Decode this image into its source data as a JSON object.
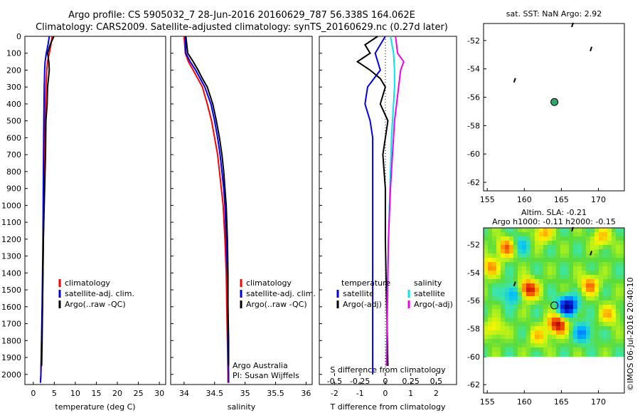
{
  "header": {
    "title_line1": "Argo profile: CS 5905032_7 28-Jun-2016 20160629_787 56.338S 164.062E",
    "title_line2": "Climatology: CARS2009. Satellite-adjusted climatology: synTS_20160629.nc (0.27d later)"
  },
  "depth_ticks": [
    "0",
    "100",
    "200",
    "300",
    "400",
    "500",
    "600",
    "700",
    "800",
    "900",
    "1000",
    "1100",
    "1200",
    "1300",
    "1400",
    "1500",
    "1600",
    "1700",
    "1800",
    "1900",
    "2000"
  ],
  "colors": {
    "climatology": "#ff0000",
    "satellite": "#0000ee",
    "argo": "#000000",
    "satellite_sal": "#00e5ee",
    "argo_sal": "#ee00ee",
    "positive": "#ff3b30",
    "positive_cyan": "#00e5ee"
  },
  "chart_data": [
    {
      "type": "line",
      "id": "temperature",
      "xlabel": "temperature (deg C)",
      "xlim": [
        -2,
        31.5
      ],
      "xticks": [
        "0",
        "5",
        "10",
        "15",
        "20",
        "25",
        "30"
      ],
      "ylim": [
        2060,
        0
      ],
      "legend": [
        "climatology",
        "satellite-adj. clim.",
        "Argo(..raw -QC)"
      ],
      "series": [
        {
          "name": "climatology",
          "depth": [
            0,
            50,
            100,
            150,
            200,
            300,
            500,
            800,
            1200,
            1600,
            2000,
            2050
          ],
          "values": [
            4.5,
            4.2,
            3.8,
            3.4,
            3.2,
            3.0,
            2.8,
            2.6,
            2.4,
            2.2,
            1.8,
            1.7
          ]
        },
        {
          "name": "satellite-adj. clim.",
          "depth": [
            0,
            50,
            100,
            150,
            200,
            300,
            500,
            800,
            1200,
            1600,
            2000,
            2050
          ],
          "values": [
            3.8,
            3.5,
            3.1,
            2.8,
            2.7,
            2.6,
            2.5,
            2.4,
            2.3,
            2.1,
            1.8,
            1.7
          ]
        },
        {
          "name": "Argo(..raw -QC)",
          "depth": [
            0,
            50,
            100,
            150,
            200,
            300,
            400,
            500,
            700,
            900,
            1200,
            1600,
            1800,
            1950
          ],
          "values": [
            4.9,
            4.0,
            3.4,
            3.7,
            3.8,
            3.4,
            3.3,
            3.0,
            2.9,
            2.7,
            2.4,
            2.2,
            2.1,
            2.0
          ]
        }
      ]
    },
    {
      "type": "line",
      "id": "salinity",
      "xlabel": "salinity",
      "xlim": [
        33.78,
        36.1
      ],
      "xticks": [
        "34",
        "34.5",
        "35",
        "35.5",
        "36"
      ],
      "ylim": [
        2060,
        0
      ],
      "legend": [
        "climatology",
        "satellite-adj. clim.",
        "Argo(..raw -QC)"
      ],
      "annotations": [
        "Argo Australia",
        "PI: Susan Wijffels"
      ],
      "series": [
        {
          "name": "climatology",
          "depth": [
            0,
            100,
            150,
            200,
            300,
            400,
            500,
            600,
            700,
            800,
            900,
            1000,
            1200,
            1400,
            1600,
            1800,
            2000,
            2050
          ],
          "values": [
            34.0,
            34.02,
            34.07,
            34.15,
            34.3,
            34.38,
            34.45,
            34.5,
            34.55,
            34.58,
            34.61,
            34.64,
            34.67,
            34.69,
            34.7,
            34.71,
            34.72,
            34.72
          ]
        },
        {
          "name": "satellite-adj. clim.",
          "depth": [
            0,
            100,
            150,
            200,
            300,
            400,
            500,
            600,
            700,
            800,
            900,
            1000,
            1200,
            1400,
            1600,
            1800,
            2000,
            2050
          ],
          "values": [
            34.02,
            34.03,
            34.1,
            34.19,
            34.34,
            34.44,
            34.5,
            34.55,
            34.59,
            34.62,
            34.65,
            34.67,
            34.69,
            34.71,
            34.72,
            34.72,
            34.73,
            34.73
          ]
        },
        {
          "name": "Argo(..raw -QC)",
          "depth": [
            0,
            100,
            150,
            200,
            250,
            300,
            400,
            500,
            600,
            700,
            800,
            900,
            1000,
            1200,
            1400,
            1600,
            1800,
            1950
          ],
          "values": [
            34.03,
            34.06,
            34.15,
            34.23,
            34.3,
            34.38,
            34.47,
            34.53,
            34.58,
            34.62,
            34.65,
            34.67,
            34.69,
            34.71,
            34.72,
            34.72,
            34.73,
            34.73
          ]
        }
      ]
    },
    {
      "type": "line",
      "id": "differences",
      "xlabel": "T difference from climatology",
      "top_axis_label": "S difference from climatology",
      "xlim": [
        -2.6,
        2.8
      ],
      "xticks": [
        "-2",
        "-1",
        "0",
        "1",
        "2"
      ],
      "sticks": [
        "-0.5",
        "-0.25",
        "0",
        "0.25",
        "0.5"
      ],
      "ylim": [
        2060,
        0
      ],
      "legend_headers": [
        "temperature",
        "salinity"
      ],
      "legend": [
        "satellite",
        "Argo(-adj)",
        "satellite",
        "Argo(-adj)"
      ],
      "series": [
        {
          "name": "temperature satellite",
          "depth": [
            0,
            100,
            200,
            300,
            400,
            500,
            600,
            800,
            1000,
            1500,
            2000
          ],
          "values": [
            0.0,
            -0.4,
            -0.2,
            -0.7,
            -0.8,
            -0.6,
            -0.5,
            -0.5,
            -0.5,
            -0.5,
            -0.5
          ]
        },
        {
          "name": "temperature Argo(-adj)",
          "depth": [
            0,
            50,
            100,
            150,
            200,
            250,
            300,
            400,
            500,
            700,
            900,
            1200,
            1600,
            1950
          ],
          "values": [
            -0.3,
            -0.8,
            -0.6,
            -1.1,
            -0.6,
            -0.2,
            0.0,
            -0.2,
            0.1,
            -0.1,
            0.0,
            0.0,
            0.05,
            0.1
          ]
        },
        {
          "name": "salinity satellite",
          "depth": [
            0,
            100,
            200,
            300,
            400,
            600,
            800,
            1000,
            1500,
            1950
          ],
          "values": [
            0.05,
            0.08,
            0.09,
            0.09,
            0.08,
            0.06,
            0.05,
            0.04,
            0.02,
            0.01
          ]
        },
        {
          "name": "salinity Argo(-adj)",
          "depth": [
            0,
            100,
            150,
            200,
            300,
            400,
            500,
            700,
            900,
            1200,
            1600,
            1950
          ],
          "values": [
            0.1,
            0.12,
            0.18,
            0.15,
            0.13,
            0.11,
            0.09,
            0.07,
            0.05,
            0.03,
            0.02,
            0.01
          ]
        }
      ]
    },
    {
      "type": "scatter",
      "id": "sst_map",
      "title": "sat. SST: NaN Argo: 2.92",
      "xlim": [
        154.5,
        173.5
      ],
      "ylim": [
        -62.6,
        -50.8
      ],
      "xticks": [
        "155",
        "160",
        "165",
        "170"
      ],
      "yticks": [
        "-52",
        "-54",
        "-56",
        "-58",
        "-60",
        "-62"
      ],
      "profile": {
        "lon": 164.062,
        "lat": -56.338
      },
      "tracks": [
        {
          "lon": 166.5,
          "lat": -50.9
        },
        {
          "lon": 169.0,
          "lat": -52.6
        },
        {
          "lon": 158.7,
          "lat": -54.8
        }
      ]
    },
    {
      "type": "heatmap",
      "id": "sla_map",
      "title_line1": "Altim. SLA: -0.21",
      "title_line2": "Argo h1000: -0.11 h2000: -0.15",
      "xlim": [
        154.5,
        173.5
      ],
      "ylim": [
        -62.6,
        -50.8
      ],
      "xticks": [
        "155",
        "160",
        "165",
        "170"
      ],
      "yticks": [
        "-52",
        "-54",
        "-56",
        "-58",
        "-60",
        "-62"
      ],
      "data_lat_range": [
        -60.0,
        -50.8
      ],
      "anomalies": [
        {
          "lon": 165.9,
          "lat": -56.4,
          "amp": -1.0
        },
        {
          "lon": 160.5,
          "lat": -55.2,
          "amp": 0.9
        },
        {
          "lon": 164.5,
          "lat": -57.7,
          "amp": 0.9
        },
        {
          "lon": 157.6,
          "lat": -52.2,
          "amp": 0.6
        },
        {
          "lon": 155.3,
          "lat": -53.6,
          "amp": 0.5
        },
        {
          "lon": 168.8,
          "lat": -54.9,
          "amp": 0.55
        },
        {
          "lon": 162.5,
          "lat": -51.2,
          "amp": 0.45
        },
        {
          "lon": 158.5,
          "lat": -55.5,
          "amp": -0.5
        },
        {
          "lon": 170.5,
          "lat": -51.5,
          "amp": 0.4
        },
        {
          "lon": 168.0,
          "lat": -58.3,
          "amp": -0.45
        },
        {
          "lon": 162.0,
          "lat": -58.6,
          "amp": 0.35
        },
        {
          "lon": 156.0,
          "lat": -58.0,
          "amp": 0.35
        },
        {
          "lon": 171.5,
          "lat": -57.0,
          "amp": 0.4
        },
        {
          "lon": 159.5,
          "lat": -52.0,
          "amp": -0.3
        }
      ],
      "profile": {
        "lon": 164.062,
        "lat": -56.338
      },
      "tracks": [
        {
          "lon": 166.5,
          "lat": -50.9
        },
        {
          "lon": 169.0,
          "lat": -52.6
        },
        {
          "lon": 158.7,
          "lat": -54.8
        }
      ],
      "watermark": "©IMOS 06-Jul-2016 20:40:10"
    }
  ]
}
